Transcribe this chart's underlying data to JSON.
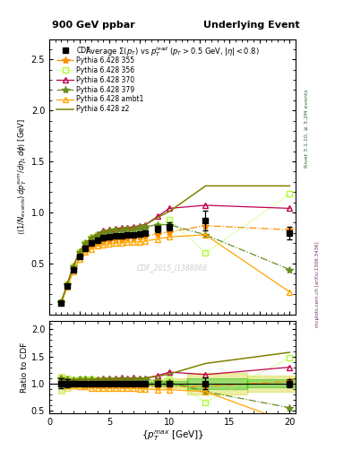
{
  "title_top": "900 GeV ppbar",
  "title_right": "Underlying Event",
  "subtitle": "Average $\\Sigma(p_T)$ vs $p_T^{lead}$ ($p_T > 0.5$ GeV, $|\\eta| < 0.8$)",
  "ylabel_main": "$\\langle(1/N_{events})\\, dp_T^{sum}/d\\eta_1\\, d\\phi\\rangle$ [GeV]",
  "ylabel_ratio": "Ratio to CDF",
  "xlabel": "$\\{p_T^{max}$ [GeV]$\\}$",
  "watermark": "CDF_2015_I1388868",
  "right_label": "Rivet 3.1.10, ≥ 3.2M events",
  "right_label2": "mcplots.cern.ch [arXiv:1306.3436]",
  "cdf_x": [
    1.0,
    1.5,
    2.0,
    2.5,
    3.0,
    3.5,
    4.0,
    4.5,
    5.0,
    5.5,
    6.0,
    6.5,
    7.0,
    7.5,
    8.0,
    9.0,
    10.0,
    13.0,
    20.0
  ],
  "cdf_y": [
    0.11,
    0.28,
    0.44,
    0.57,
    0.65,
    0.7,
    0.73,
    0.75,
    0.76,
    0.77,
    0.77,
    0.78,
    0.78,
    0.79,
    0.8,
    0.84,
    0.86,
    0.92,
    0.8
  ],
  "cdf_yerr": [
    0.01,
    0.02,
    0.02,
    0.02,
    0.02,
    0.02,
    0.02,
    0.02,
    0.02,
    0.02,
    0.02,
    0.02,
    0.02,
    0.02,
    0.02,
    0.03,
    0.04,
    0.1,
    0.06
  ],
  "p355_x": [
    1.0,
    1.5,
    2.0,
    2.5,
    3.0,
    3.5,
    4.0,
    4.5,
    5.0,
    5.5,
    6.0,
    6.5,
    7.0,
    7.5,
    8.0,
    9.0,
    10.0,
    13.0,
    20.0
  ],
  "p355_y": [
    0.12,
    0.29,
    0.45,
    0.57,
    0.63,
    0.67,
    0.7,
    0.72,
    0.73,
    0.74,
    0.74,
    0.75,
    0.75,
    0.76,
    0.77,
    0.79,
    0.81,
    0.87,
    0.83
  ],
  "p356_x": [
    1.0,
    1.5,
    2.0,
    2.5,
    3.0,
    3.5,
    4.0,
    4.5,
    5.0,
    5.5,
    6.0,
    6.5,
    7.0,
    7.5,
    8.0,
    9.0,
    10.0,
    13.0,
    20.0
  ],
  "p356_y": [
    0.12,
    0.3,
    0.47,
    0.61,
    0.7,
    0.75,
    0.78,
    0.8,
    0.81,
    0.82,
    0.82,
    0.83,
    0.83,
    0.83,
    0.84,
    0.87,
    0.93,
    0.6,
    1.18
  ],
  "p370_x": [
    1.0,
    1.5,
    2.0,
    2.5,
    3.0,
    3.5,
    4.0,
    4.5,
    5.0,
    5.5,
    6.0,
    6.5,
    7.0,
    7.5,
    8.0,
    9.0,
    10.0,
    13.0,
    20.0
  ],
  "p370_y": [
    0.12,
    0.3,
    0.47,
    0.61,
    0.7,
    0.75,
    0.79,
    0.82,
    0.83,
    0.84,
    0.85,
    0.85,
    0.86,
    0.87,
    0.88,
    0.96,
    1.04,
    1.07,
    1.04
  ],
  "p379_x": [
    1.0,
    1.5,
    2.0,
    2.5,
    3.0,
    3.5,
    4.0,
    4.5,
    5.0,
    5.5,
    6.0,
    6.5,
    7.0,
    7.5,
    8.0,
    9.0,
    10.0,
    13.0,
    20.0
  ],
  "p379_y": [
    0.12,
    0.3,
    0.47,
    0.61,
    0.7,
    0.75,
    0.78,
    0.81,
    0.82,
    0.83,
    0.83,
    0.84,
    0.84,
    0.85,
    0.86,
    0.88,
    0.88,
    0.78,
    0.44
  ],
  "ambt1_x": [
    1.0,
    1.5,
    2.0,
    2.5,
    3.0,
    3.5,
    4.0,
    4.5,
    5.0,
    5.5,
    6.0,
    6.5,
    7.0,
    7.5,
    8.0,
    9.0,
    10.0,
    13.0,
    20.0
  ],
  "ambt1_y": [
    0.11,
    0.27,
    0.42,
    0.54,
    0.61,
    0.64,
    0.67,
    0.68,
    0.69,
    0.7,
    0.7,
    0.71,
    0.71,
    0.71,
    0.72,
    0.74,
    0.76,
    0.78,
    0.22
  ],
  "z2_x": [
    1.0,
    1.5,
    2.0,
    2.5,
    3.0,
    3.5,
    4.0,
    4.5,
    5.0,
    5.5,
    6.0,
    6.5,
    7.0,
    7.5,
    8.0,
    9.0,
    10.0,
    13.0,
    20.0
  ],
  "z2_y": [
    0.12,
    0.3,
    0.47,
    0.61,
    0.7,
    0.75,
    0.78,
    0.81,
    0.82,
    0.83,
    0.84,
    0.84,
    0.85,
    0.87,
    0.88,
    0.95,
    1.01,
    1.26,
    1.26
  ],
  "color_cdf": "#000000",
  "color_p355": "#ff8c00",
  "color_p356": "#adff2f",
  "color_p370": "#c00050",
  "color_p379": "#6b8e23",
  "color_ambt1": "#ffa500",
  "color_z2": "#808000",
  "main_ylim": [
    0.0,
    2.7
  ],
  "ratio_ylim": [
    0.45,
    2.15
  ],
  "xlim": [
    0.0,
    20.5
  ],
  "ratio_green_lo": 0.9,
  "ratio_green_hi": 1.1,
  "ratio_yellow_lo": 0.8,
  "ratio_yellow_hi": 1.2,
  "ratio_green_color": "#00bb00",
  "ratio_yellow_color": "#cccc00",
  "ratio_band_alpha": 0.35
}
